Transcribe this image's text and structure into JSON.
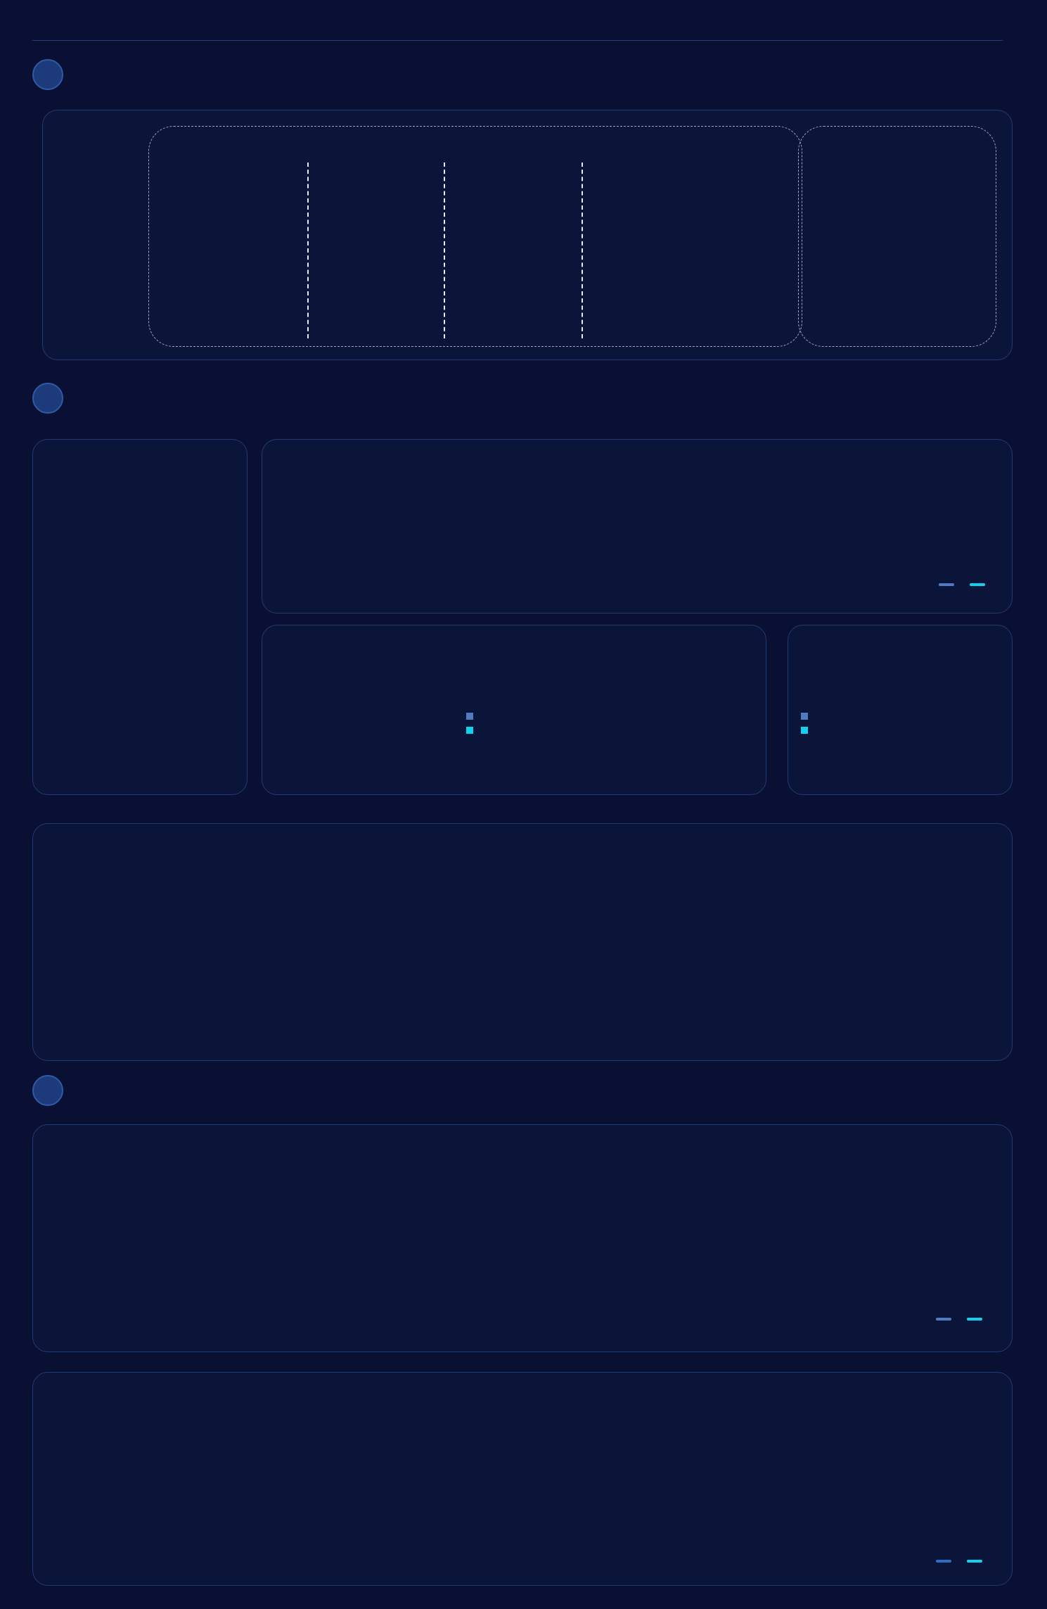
{
  "app": {},
  "sections": {},
  "overview": {
    "headers": {
      "targets": []
    }
  },
  "charts": {
    "trend": {},
    "workshop1": {},
    "workshop2": {}
  },
  "colors": {
    "bg": "#0a1033",
    "panel": "#0b1439",
    "accent_gold": "#f6d27a",
    "series_blue": "#4f7cc0",
    "series_cyan": "#12d1ef",
    "negative_red": "#e0232f",
    "positive_blue": "#2aa0e8"
  },
  "chart_data": []
}
